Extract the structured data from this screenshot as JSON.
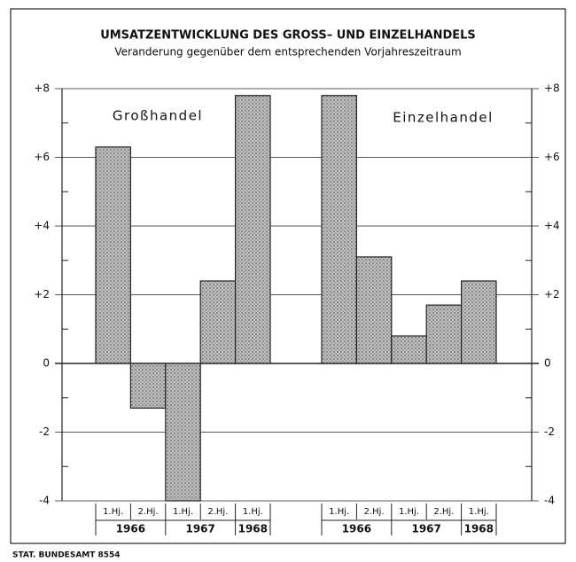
{
  "chart_data": {
    "type": "bar",
    "title": "UMSATZENTWICKLUNG DES GROSS– UND EINZELHANDELS",
    "subtitle": "Veranderung gegenüber dem entsprechenden Vorjahreszeitraum",
    "categories": [
      "1.Hj.",
      "2.Hj.",
      "1.Hj.",
      "2.Hj.",
      "1.Hj."
    ],
    "years": [
      "1966",
      "1966",
      "1967",
      "1967",
      "1968"
    ],
    "series": [
      {
        "name": "Großhandel",
        "color": "#bdbdbd",
        "values": [
          6.3,
          -1.3,
          -4.0,
          2.4,
          7.8
        ]
      },
      {
        "name": "Einzelhandel",
        "color": "#bdbdbd",
        "values": [
          7.8,
          3.1,
          0.8,
          1.7,
          2.4
        ]
      }
    ],
    "ylim": [
      -4,
      8
    ],
    "yticks": [
      {
        "value": 8,
        "label": "+8"
      },
      {
        "value": 6,
        "label": "+6"
      },
      {
        "value": 4,
        "label": "+4"
      },
      {
        "value": 2,
        "label": "+2"
      },
      0,
      -2,
      -4
    ],
    "minor_yticks": [
      7,
      5,
      3,
      1,
      -1,
      -3
    ],
    "grid": true,
    "source": "STAT. BUNDESAMT 8554"
  }
}
